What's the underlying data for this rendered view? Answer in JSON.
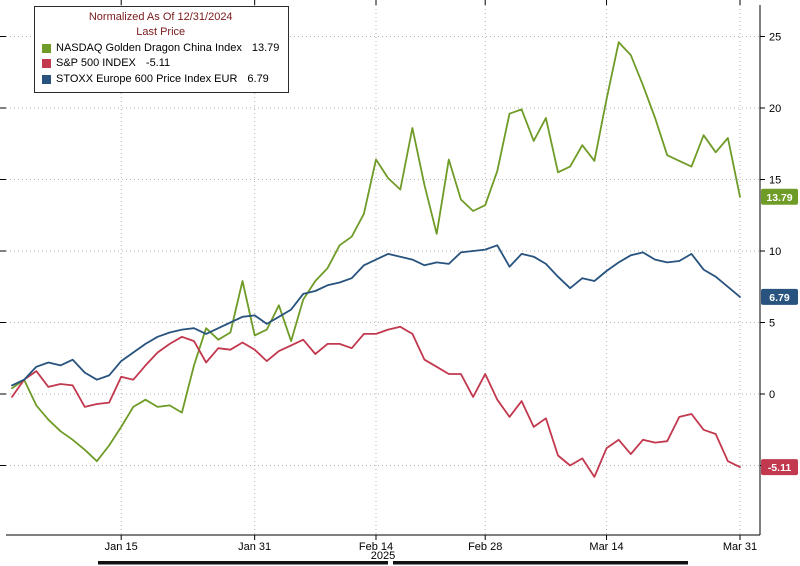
{
  "legend": {
    "title_line1": "Normalized As Of 12/31/2024",
    "title_line2": "Last Price",
    "entries": [
      {
        "label": "NASDAQ Golden Dragon China Index",
        "value": "13.79",
        "color": "#6f9b27"
      },
      {
        "label": "S&P 500 INDEX",
        "value": "-5.11",
        "color": "#c2384e"
      },
      {
        "label": "STOXX Europe 600 Price Index EUR",
        "value": "6.79",
        "color": "#27537e"
      }
    ]
  },
  "chart_data": {
    "type": "line",
    "title": "Normalized As Of 12/31/2024 - Last Price",
    "grid": "dotted",
    "legend_position": "top-left",
    "x_axis": {
      "year_label": "2025",
      "tick_labels": [
        "Jan 15",
        "Jan 31",
        "Feb 14",
        "Feb 28",
        "Mar 14",
        "Mar 31"
      ],
      "tick_indices": [
        9,
        20,
        30,
        39,
        49,
        60
      ]
    },
    "y_axis": {
      "side": "right",
      "ticks": [
        25,
        20,
        15,
        10,
        5,
        0,
        -5
      ],
      "ylim": [
        -10,
        27
      ]
    },
    "x": [
      "01/02",
      "01/03",
      "01/06",
      "01/07",
      "01/08",
      "01/09",
      "01/10",
      "01/13",
      "01/14",
      "01/15",
      "01/16",
      "01/17",
      "01/21",
      "01/22",
      "01/23",
      "01/24",
      "01/27",
      "01/28",
      "01/29",
      "01/30",
      "01/31",
      "02/03",
      "02/04",
      "02/05",
      "02/06",
      "02/07",
      "02/10",
      "02/11",
      "02/12",
      "02/13",
      "02/14",
      "02/18",
      "02/19",
      "02/20",
      "02/21",
      "02/24",
      "02/25",
      "02/26",
      "02/27",
      "02/28",
      "03/03",
      "03/04",
      "03/05",
      "03/06",
      "03/07",
      "03/10",
      "03/11",
      "03/12",
      "03/13",
      "03/14",
      "03/17",
      "03/18",
      "03/19",
      "03/20",
      "03/21",
      "03/24",
      "03/25",
      "03/26",
      "03/27",
      "03/28",
      "03/31"
    ],
    "series": [
      {
        "name": "NASDAQ Golden Dragon China Index",
        "color": "#6f9b27",
        "last_label": "13.79",
        "values": [
          0.4,
          1.0,
          -0.8,
          -1.8,
          -2.6,
          -3.2,
          -3.9,
          -4.7,
          -3.6,
          -2.3,
          -0.9,
          -0.4,
          -0.9,
          -0.8,
          -1.3,
          2.0,
          4.6,
          3.8,
          4.3,
          7.9,
          4.1,
          4.5,
          6.2,
          3.7,
          6.6,
          7.9,
          8.8,
          10.4,
          11.0,
          12.6,
          16.4,
          15.1,
          14.3,
          18.6,
          14.6,
          11.2,
          16.4,
          13.6,
          12.8,
          13.2,
          15.6,
          19.6,
          19.9,
          17.7,
          19.3,
          15.5,
          15.9,
          17.4,
          16.3,
          20.6,
          24.6,
          23.7,
          21.6,
          19.3,
          16.7,
          16.3,
          15.9,
          18.1,
          16.9,
          17.9,
          13.79
        ]
      },
      {
        "name": "S&P 500 INDEX",
        "color": "#c2384e",
        "last_label": "-5.11",
        "values": [
          -0.2,
          1.0,
          1.6,
          0.5,
          0.7,
          0.6,
          -0.9,
          -0.7,
          -0.6,
          1.2,
          1.0,
          2.0,
          2.9,
          3.5,
          4.0,
          3.7,
          2.2,
          3.2,
          3.1,
          3.6,
          3.1,
          2.3,
          3.0,
          3.4,
          3.8,
          2.8,
          3.5,
          3.5,
          3.2,
          4.2,
          4.2,
          4.5,
          4.7,
          4.2,
          2.4,
          1.9,
          1.4,
          1.4,
          -0.2,
          1.4,
          -0.4,
          -1.6,
          -0.5,
          -2.3,
          -1.7,
          -4.3,
          -5.0,
          -4.5,
          -5.8,
          -3.8,
          -3.2,
          -4.2,
          -3.2,
          -3.4,
          -3.3,
          -1.6,
          -1.4,
          -2.5,
          -2.8,
          -4.7,
          -5.11
        ]
      },
      {
        "name": "STOXX Europe 600 Price Index EUR",
        "color": "#27537e",
        "last_label": "6.79",
        "values": [
          0.6,
          1.0,
          1.9,
          2.2,
          2.0,
          2.4,
          1.5,
          1.0,
          1.3,
          2.3,
          2.9,
          3.5,
          4.0,
          4.3,
          4.5,
          4.6,
          4.2,
          4.6,
          5.0,
          5.4,
          5.5,
          4.9,
          5.4,
          5.9,
          7.0,
          7.2,
          7.6,
          7.8,
          8.1,
          9.0,
          9.4,
          9.8,
          9.6,
          9.4,
          9.0,
          9.2,
          9.1,
          9.9,
          10.0,
          10.1,
          10.4,
          8.9,
          9.8,
          9.6,
          9.1,
          8.2,
          7.4,
          8.1,
          7.9,
          8.6,
          9.2,
          9.7,
          9.9,
          9.4,
          9.2,
          9.3,
          9.8,
          8.7,
          8.2,
          7.5,
          6.79
        ]
      }
    ]
  }
}
